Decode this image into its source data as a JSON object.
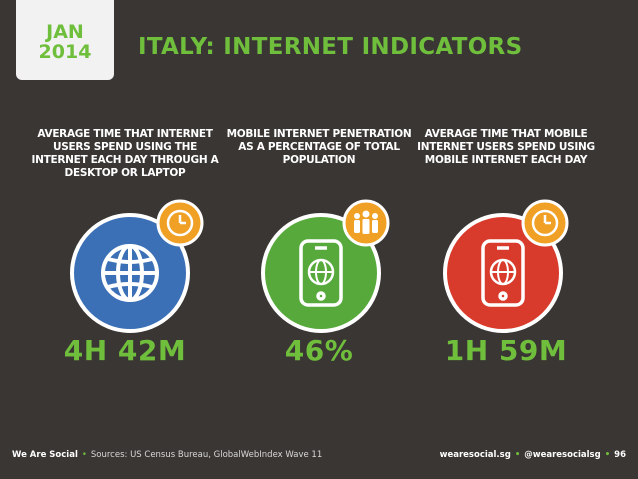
{
  "header": {
    "month": "JAN",
    "year": "2014",
    "title": "ITALY: INTERNET INDICATORS"
  },
  "indicators": [
    {
      "label": "AVERAGE TIME THAT INTERNET USERS SPEND USING THE INTERNET EACH DAY THROUGH A DESKTOP OR LAPTOP",
      "value": "4H 42M",
      "icon": "globe-icon",
      "badge": "clock-icon",
      "circle_color": "#3b6fb6"
    },
    {
      "label": "MOBILE INTERNET PENETRATION AS A PERCENTAGE OF TOTAL POPULATION",
      "value": "46%",
      "icon": "smartphone-globe-icon",
      "badge": "people-icon",
      "circle_color": "#56a93a"
    },
    {
      "label": "AVERAGE TIME THAT MOBILE INTERNET USERS SPEND USING MOBILE INTERNET EACH DAY",
      "value": "1H 59M",
      "icon": "smartphone-globe-icon",
      "badge": "clock-icon",
      "circle_color": "#d83a2c"
    }
  ],
  "footer": {
    "brand": "We Are Social",
    "sources": "Sources: US Census Bureau, GlobalWebIndex Wave 11",
    "site": "wearesocial.sg",
    "handle": "@wearesocialsg",
    "page": "96"
  },
  "colors": {
    "background": "#3a3634",
    "accent": "#6fbf3c",
    "badge": "#f0a024"
  }
}
